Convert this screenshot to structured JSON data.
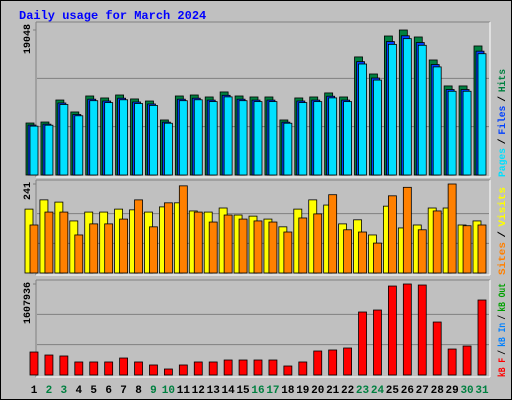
{
  "title": "Daily usage for March 2024",
  "legend_separator": "/",
  "highlight_color": "#008040",
  "highlighted_indices": [
    1,
    2,
    8,
    9,
    15,
    16,
    22,
    23,
    29,
    30
  ],
  "chart_data": [
    {
      "type": "bar",
      "ylim": [
        0,
        19048
      ],
      "yticks": [
        19048
      ],
      "series": [
        {
          "name": "Hits",
          "color": "#008040",
          "values": [
            6830,
            6960,
            9850,
            8280,
            10380,
            10120,
            10510,
            9990,
            9720,
            7230,
            10380,
            10510,
            10250,
            10910,
            10380,
            10250,
            10250,
            7230,
            10120,
            10250,
            10780,
            10250,
            15510,
            13270,
            18260,
            19048,
            18130,
            15110,
            11700,
            11700,
            16950
          ]
        },
        {
          "name": "Files",
          "color": "#0040ff",
          "values": [
            6560,
            6680,
            9460,
            7950,
            9960,
            9720,
            10090,
            9590,
            9330,
            6940,
            9960,
            10090,
            9840,
            10470,
            9960,
            9840,
            9840,
            6940,
            9720,
            9840,
            10350,
            9840,
            14890,
            12740,
            17530,
            18290,
            17400,
            14510,
            11230,
            11230,
            16270
          ]
        },
        {
          "name": "Pages",
          "color": "#00e0ff",
          "values": [
            6420,
            6540,
            9260,
            7780,
            9760,
            9510,
            9880,
            9390,
            9140,
            6800,
            9760,
            9880,
            9640,
            10260,
            9760,
            9640,
            9640,
            6800,
            9510,
            9640,
            10130,
            9640,
            14580,
            12470,
            17160,
            17910,
            17040,
            14200,
            11000,
            11000,
            15930
          ]
        }
      ]
    },
    {
      "type": "bar",
      "ylim": [
        0,
        241
      ],
      "yticks": [
        241
      ],
      "series": [
        {
          "name": "Visits",
          "color": "#ffff00",
          "values": [
            173,
            198,
            192,
            141,
            165,
            165,
            173,
            171,
            165,
            179,
            190,
            168,
            165,
            176,
            157,
            154,
            146,
            125,
            173,
            198,
            184,
            133,
            144,
            103,
            181,
            122,
            130,
            176,
            176,
            130,
            141
          ]
        },
        {
          "name": "Sites",
          "color": "#ff8000",
          "values": [
            130,
            165,
            165,
            103,
            133,
            133,
            146,
            198,
            125,
            190,
            236,
            165,
            138,
            157,
            146,
            141,
            138,
            111,
            149,
            160,
            212,
            117,
            111,
            81,
            209,
            232,
            117,
            168,
            241,
            128,
            130
          ]
        }
      ]
    },
    {
      "type": "bar",
      "ylim": [
        0,
        1607936
      ],
      "yticks": [
        1607936
      ],
      "categories": [
        "1",
        "2",
        "3",
        "4",
        "5",
        "6",
        "7",
        "8",
        "9",
        "10",
        "11",
        "12",
        "13",
        "14",
        "15",
        "16",
        "17",
        "18",
        "19",
        "20",
        "21",
        "22",
        "23",
        "24",
        "25",
        "26",
        "27",
        "28",
        "29",
        "30",
        "31"
      ],
      "series": [
        {
          "name": "kB Out",
          "color": "#00a000",
          "values": [
            null,
            null,
            null,
            null,
            null,
            null,
            null,
            null,
            null,
            null,
            null,
            null,
            null,
            null,
            null,
            null,
            null,
            null,
            null,
            null,
            null,
            null,
            null,
            null,
            null,
            null,
            null,
            null,
            null,
            null,
            null
          ]
        },
        {
          "name": "kB In",
          "color": "#0080ff",
          "values": [
            null,
            null,
            null,
            null,
            null,
            null,
            null,
            null,
            null,
            null,
            null,
            null,
            null,
            null,
            null,
            null,
            null,
            null,
            null,
            null,
            null,
            null,
            null,
            null,
            null,
            null,
            null,
            null,
            null,
            null,
            null
          ]
        },
        {
          "name": "kB F",
          "color": "#ff0000",
          "values": [
            406000,
            353000,
            336000,
            230000,
            230000,
            230000,
            300000,
            230000,
            177000,
            106000,
            177000,
            230000,
            230000,
            265000,
            265000,
            265000,
            265000,
            159000,
            230000,
            424000,
            442000,
            477000,
            1113000,
            1148000,
            1572000,
            1607936,
            1590000,
            936000,
            459000,
            512000,
            1325000
          ]
        }
      ]
    }
  ]
}
